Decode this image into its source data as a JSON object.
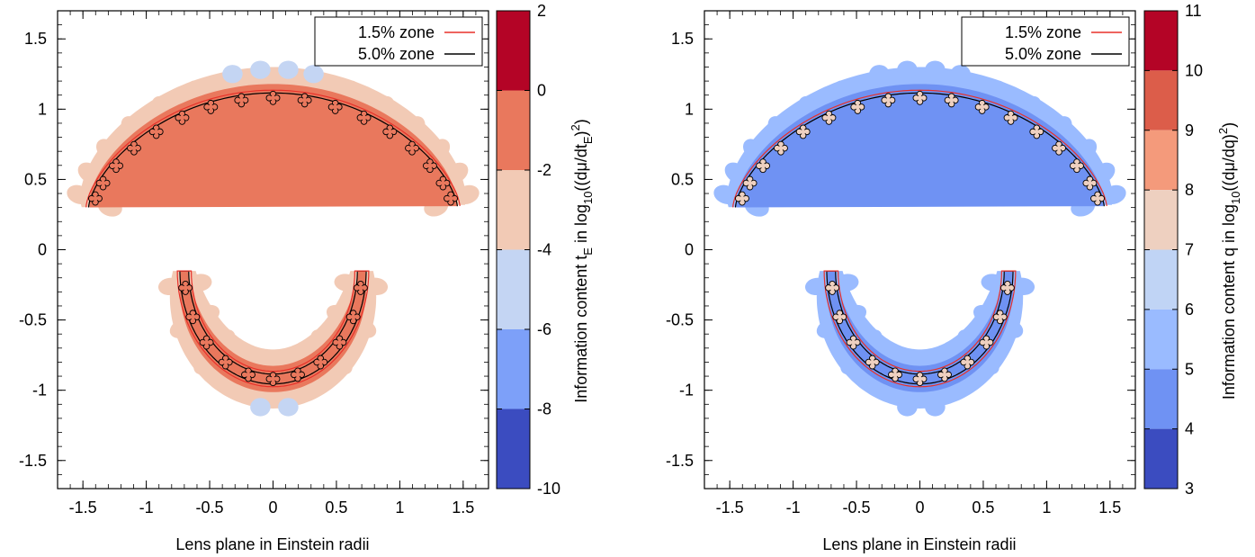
{
  "chart_data": [
    {
      "type": "heatmap",
      "title": "",
      "xlabel": "Lens plane in Einstein radii",
      "ylabel": "",
      "xlim": [
        -1.7,
        1.7
      ],
      "ylim": [
        -1.7,
        1.7
      ],
      "xticks": [
        "-1.5",
        "-1",
        "-0.5",
        "0",
        "0.5",
        "1",
        "1.5"
      ],
      "yticks": [
        "1.5",
        "1",
        "0.5",
        "0",
        "-0.5",
        "-1",
        "-1.5"
      ],
      "legend_position": "top-right",
      "legend": [
        {
          "label": "1.5% zone",
          "color": "#e8312a"
        },
        {
          "label": "5.0% zone",
          "color": "#000000"
        }
      ],
      "colorbar": {
        "label_main": "Information content t",
        "label_sub1": "E",
        "label_mid": " in log",
        "label_sub2": "10",
        "label_end1": "((dμ/dt",
        "label_sub3": "E",
        "label_end2": ")",
        "label_sup": "2",
        "label_close": ")",
        "range": [
          -10,
          2
        ],
        "ticks": [
          "2",
          "0",
          "-2",
          "-4",
          "-6",
          "-8",
          "-10"
        ],
        "bands": [
          {
            "from": 0,
            "to": 2,
            "color": "#b40426"
          },
          {
            "from": -2,
            "to": 0,
            "color": "#e9785d"
          },
          {
            "from": -4,
            "to": -2,
            "color": "#f2cab5"
          },
          {
            "from": -6,
            "to": -4,
            "color": "#c4d5f3"
          },
          {
            "from": -8,
            "to": -6,
            "color": "#7da0f9"
          },
          {
            "from": -10,
            "to": -8,
            "color": "#3b4cc0"
          }
        ]
      },
      "dominant_band": "#f2cab5",
      "upper_arc_color": "#e9785d",
      "lobe_color": "#f2cab5",
      "minor_lobe_color": "#c4d5f3",
      "bead_color": "#e9785d"
    },
    {
      "type": "heatmap",
      "title": "",
      "xlabel": "Lens plane in Einstein radii",
      "ylabel": "",
      "xlim": [
        -1.7,
        1.7
      ],
      "ylim": [
        -1.7,
        1.7
      ],
      "xticks": [
        "-1.5",
        "-1",
        "-0.5",
        "0",
        "0.5",
        "1",
        "1.5"
      ],
      "yticks": [
        "1.5",
        "1",
        "0.5",
        "0",
        "-0.5",
        "-1",
        "-1.5"
      ],
      "legend_position": "top-right",
      "legend": [
        {
          "label": "1.5% zone",
          "color": "#e8312a"
        },
        {
          "label": "5.0% zone",
          "color": "#000000"
        }
      ],
      "colorbar": {
        "label_main": "Information content q in log",
        "label_sub2": "10",
        "label_end1": "((dμ/dq)",
        "label_sup": "2",
        "label_close": ")",
        "range": [
          3,
          11
        ],
        "ticks": [
          "11",
          "10",
          "9",
          "8",
          "7",
          "6",
          "5",
          "4",
          "3"
        ],
        "bands": [
          {
            "from": 10,
            "to": 11,
            "color": "#b40426"
          },
          {
            "from": 9,
            "to": 10,
            "color": "#dc5d4a"
          },
          {
            "from": 8,
            "to": 9,
            "color": "#f49a7b"
          },
          {
            "from": 7,
            "to": 8,
            "color": "#eed0c0"
          },
          {
            "from": 6,
            "to": 7,
            "color": "#c0d4f5"
          },
          {
            "from": 5,
            "to": 6,
            "color": "#9abbff"
          },
          {
            "from": 4,
            "to": 5,
            "color": "#6f92f3"
          },
          {
            "from": 3,
            "to": 4,
            "color": "#3b4cc0"
          }
        ]
      },
      "dominant_band": "#9abbff",
      "upper_arc_color": "#6f92f3",
      "lobe_color": "#9abbff",
      "minor_lobe_color": "#9abbff",
      "bead_color": "#eed0c0"
    }
  ]
}
